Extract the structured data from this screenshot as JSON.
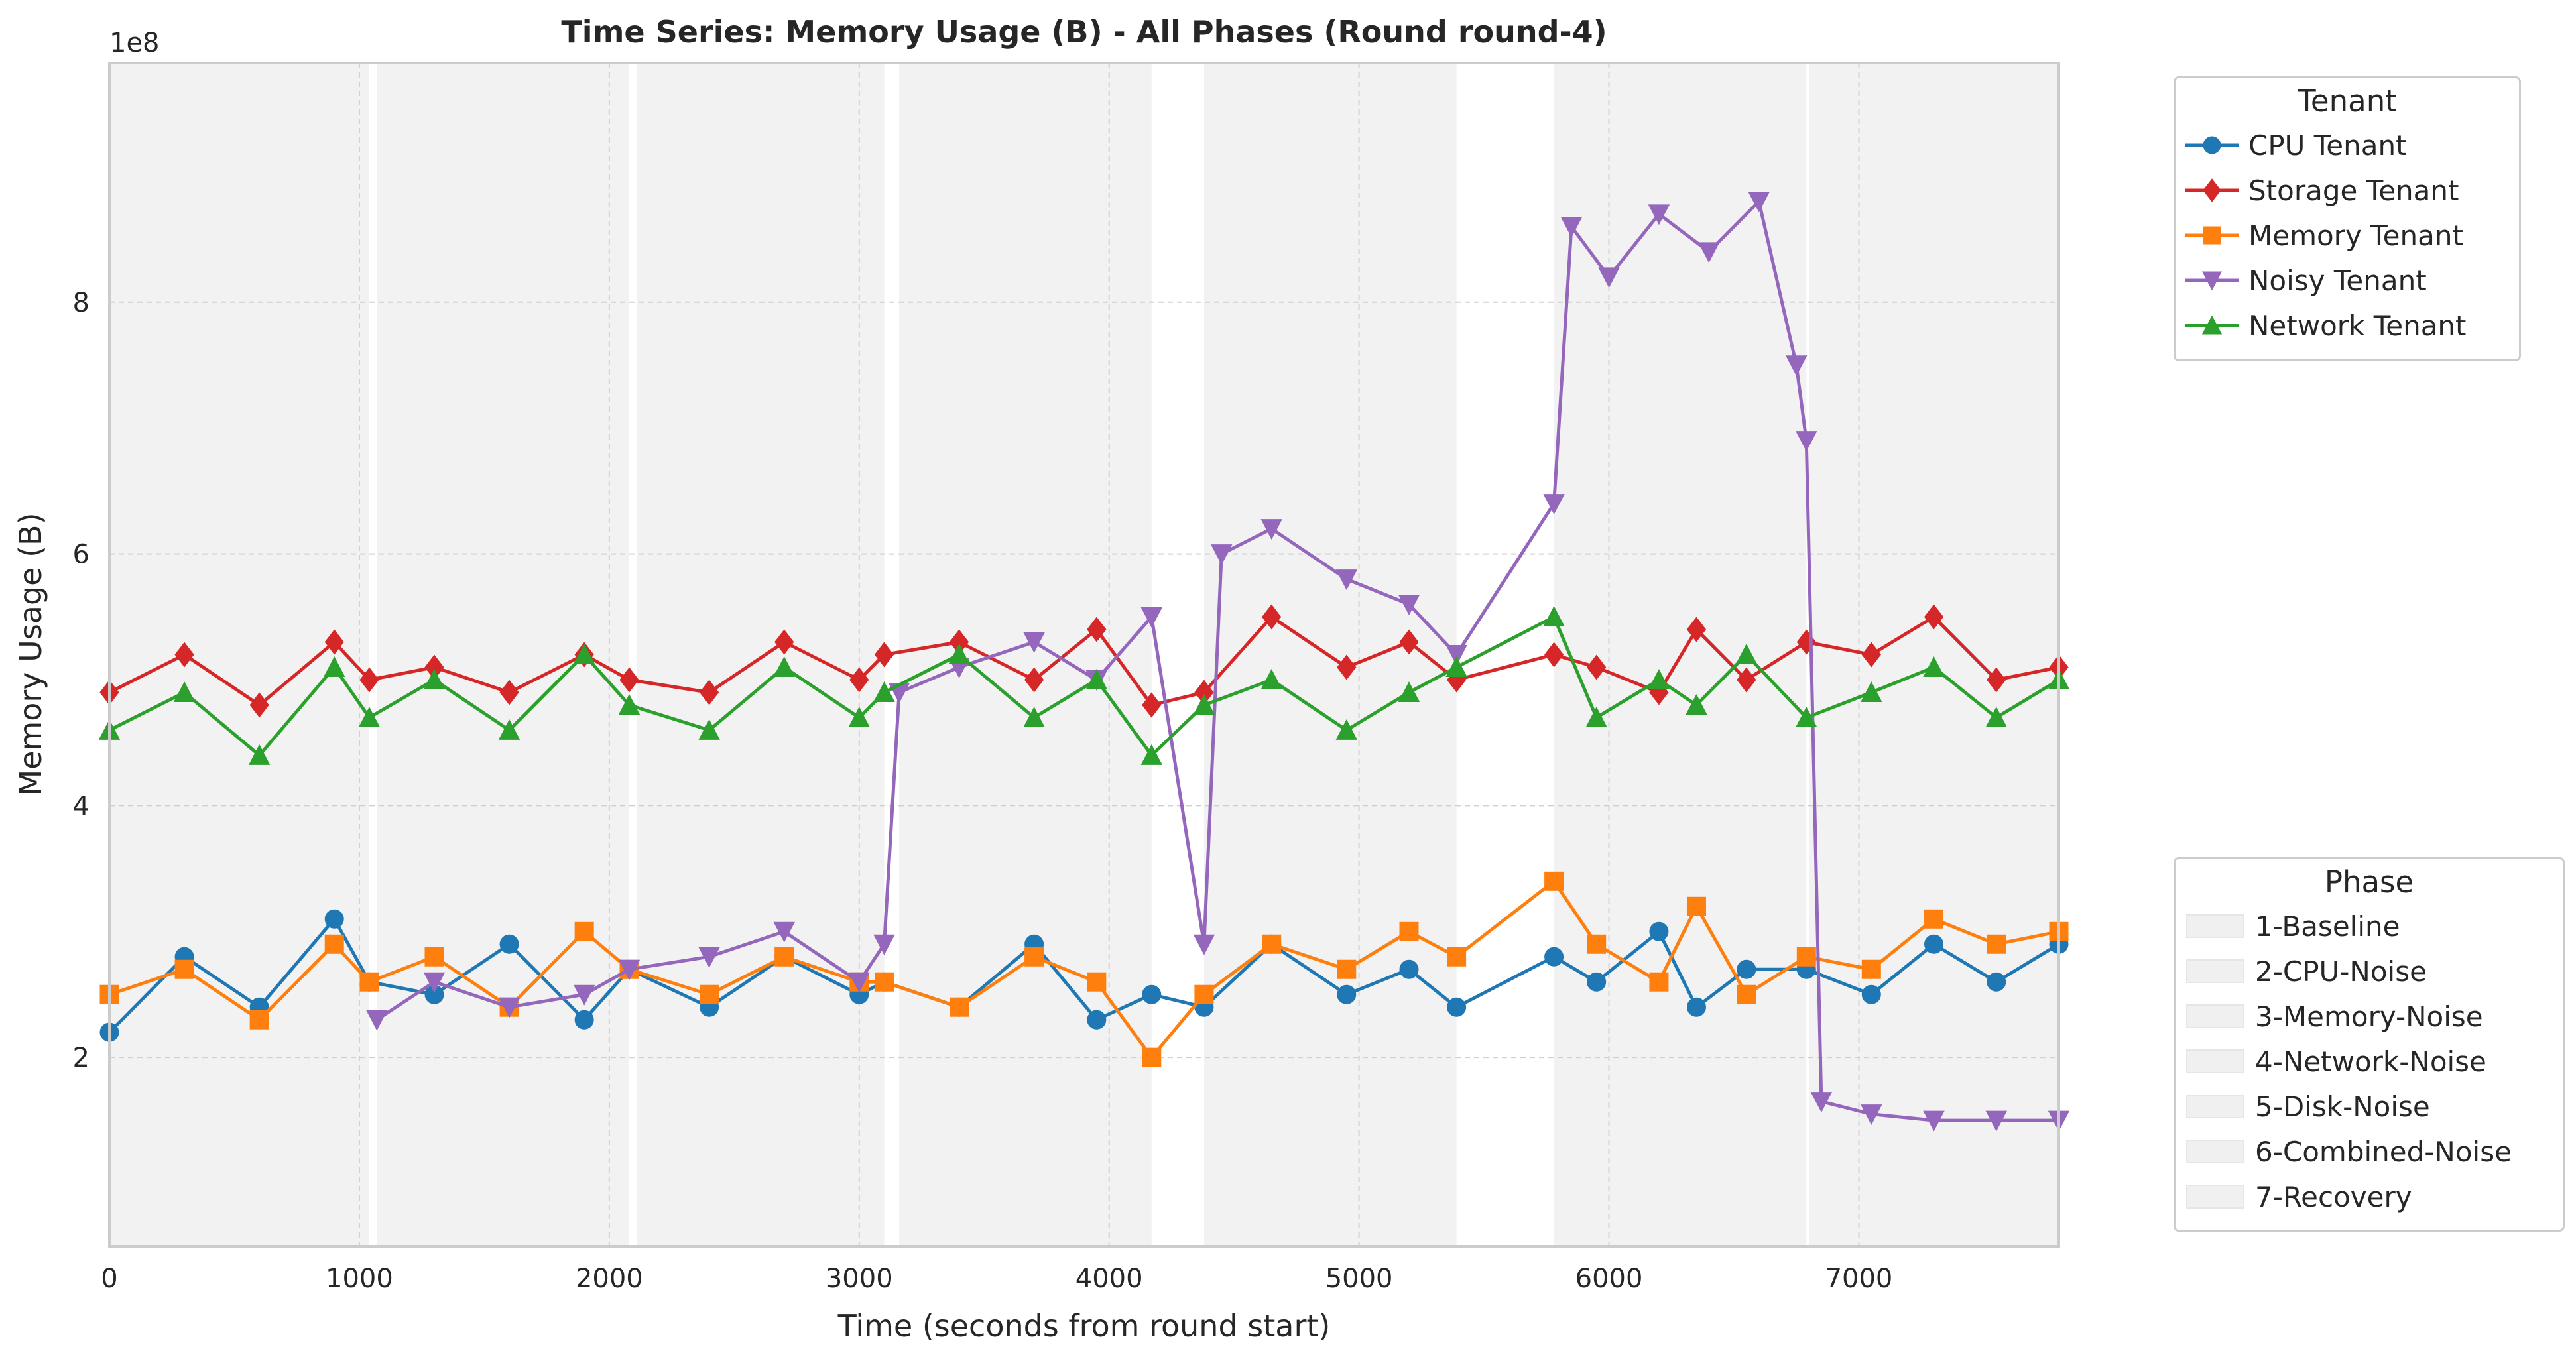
{
  "chart_data": {
    "type": "line",
    "title": "Time Series: Memory Usage (B) - All Phases (Round round-4)",
    "xlabel": "Time (seconds from round start)",
    "ylabel": "Memory Usage (B)",
    "y_offset_label": "1e8",
    "xlim": [
      0,
      7800
    ],
    "ylim": [
      0.5,
      9.9
    ],
    "x_ticks": [
      0,
      1000,
      2000,
      3000,
      4000,
      5000,
      6000,
      7000
    ],
    "x_tick_labels": [
      "0",
      "1000",
      "2000",
      "3000",
      "4000",
      "5000",
      "6000",
      "7000"
    ],
    "y_ticks": [
      2,
      4,
      6,
      8
    ],
    "y_tick_labels": [
      "2",
      "4",
      "6",
      "8"
    ],
    "grid": true,
    "phases": [
      {
        "name": "1-Baseline",
        "start": 0,
        "end": 1040
      },
      {
        "name": "2-CPU-Noise",
        "start": 1070,
        "end": 2080
      },
      {
        "name": "3-Memory-Noise",
        "start": 2110,
        "end": 3100
      },
      {
        "name": "4-Network-Noise",
        "start": 3160,
        "end": 4170
      },
      {
        "name": "5-Disk-Noise",
        "start": 4380,
        "end": 5390
      },
      {
        "name": "6-Combined-Noise",
        "start": 5780,
        "end": 6790
      },
      {
        "name": "7-Recovery",
        "start": 6800,
        "end": 7800
      }
    ],
    "phase_legend_title": "Phase",
    "tenant_legend_title": "Tenant",
    "legend_position": "outside-right",
    "series": [
      {
        "name": "CPU Tenant",
        "color": "#1f77b4",
        "marker": "circle",
        "x": [
          0,
          300,
          600,
          900,
          1040,
          1300,
          1600,
          1900,
          2080,
          2400,
          2700,
          3000,
          3100,
          3400,
          3700,
          3950,
          4170,
          4380,
          4650,
          4950,
          5200,
          5390,
          5780,
          5950,
          6200,
          6350,
          6550,
          6790,
          7050,
          7300,
          7550,
          7800
        ],
        "y": [
          2.2,
          2.8,
          2.4,
          3.1,
          2.6,
          2.5,
          2.9,
          2.3,
          2.7,
          2.4,
          2.8,
          2.5,
          2.6,
          2.4,
          2.9,
          2.3,
          2.5,
          2.4,
          2.9,
          2.5,
          2.7,
          2.4,
          2.8,
          2.6,
          3.0,
          2.4,
          2.7,
          2.7,
          2.5,
          2.9,
          2.6,
          2.9
        ]
      },
      {
        "name": "Storage Tenant",
        "color": "#d62728",
        "marker": "diamond",
        "x": [
          0,
          300,
          600,
          900,
          1040,
          1300,
          1600,
          1900,
          2080,
          2400,
          2700,
          3000,
          3100,
          3400,
          3700,
          3950,
          4170,
          4380,
          4650,
          4950,
          5200,
          5390,
          5780,
          5950,
          6200,
          6350,
          6550,
          6790,
          7050,
          7300,
          7550,
          7800
        ],
        "y": [
          4.9,
          5.2,
          4.8,
          5.3,
          5.0,
          5.1,
          4.9,
          5.2,
          5.0,
          4.9,
          5.3,
          5.0,
          5.2,
          5.3,
          5.0,
          5.4,
          4.8,
          4.9,
          5.5,
          5.1,
          5.3,
          5.0,
          5.2,
          5.1,
          4.9,
          5.4,
          5.0,
          5.3,
          5.2,
          5.5,
          5.0,
          5.1
        ]
      },
      {
        "name": "Memory Tenant",
        "color": "#ff7f0e",
        "marker": "square",
        "x": [
          0,
          300,
          600,
          900,
          1040,
          1300,
          1600,
          1900,
          2080,
          2400,
          2700,
          3000,
          3100,
          3400,
          3700,
          3950,
          4170,
          4380,
          4650,
          4950,
          5200,
          5390,
          5780,
          5950,
          6200,
          6350,
          6550,
          6790,
          7050,
          7300,
          7550,
          7800
        ],
        "y": [
          2.5,
          2.7,
          2.3,
          2.9,
          2.6,
          2.8,
          2.4,
          3.0,
          2.7,
          2.5,
          2.8,
          2.6,
          2.6,
          2.4,
          2.8,
          2.6,
          2.0,
          2.5,
          2.9,
          2.7,
          3.0,
          2.8,
          3.4,
          2.9,
          2.6,
          3.2,
          2.5,
          2.8,
          2.7,
          3.1,
          2.9,
          3.0
        ]
      },
      {
        "name": "Noisy Tenant",
        "color": "#9467bd",
        "marker": "triangle-down",
        "x": [
          1070,
          1300,
          1600,
          1900,
          2080,
          2400,
          2700,
          3000,
          3100,
          3160,
          3400,
          3700,
          3950,
          4170,
          4380,
          4450,
          4650,
          4950,
          5200,
          5390,
          5780,
          5850,
          6000,
          6200,
          6400,
          6600,
          6750,
          6790,
          6850,
          7050,
          7300,
          7550,
          7800
        ],
        "y": [
          2.3,
          2.6,
          2.4,
          2.5,
          2.7,
          2.8,
          3.0,
          2.6,
          2.9,
          4.9,
          5.1,
          5.3,
          5.0,
          5.5,
          2.9,
          6.0,
          6.2,
          5.8,
          5.6,
          5.2,
          6.4,
          8.6,
          8.2,
          8.7,
          8.4,
          8.8,
          7.5,
          6.9,
          1.65,
          1.55,
          1.5,
          1.5,
          1.5
        ]
      },
      {
        "name": "Network Tenant",
        "color": "#2ca02c",
        "marker": "triangle-up",
        "x": [
          0,
          300,
          600,
          900,
          1040,
          1300,
          1600,
          1900,
          2080,
          2400,
          2700,
          3000,
          3100,
          3400,
          3700,
          3950,
          4170,
          4380,
          4650,
          4950,
          5200,
          5390,
          5780,
          5950,
          6200,
          6350,
          6550,
          6790,
          7050,
          7300,
          7550,
          7800
        ],
        "y": [
          4.6,
          4.9,
          4.4,
          5.1,
          4.7,
          5.0,
          4.6,
          5.2,
          4.8,
          4.6,
          5.1,
          4.7,
          4.9,
          5.2,
          4.7,
          5.0,
          4.4,
          4.8,
          5.0,
          4.6,
          4.9,
          5.1,
          5.5,
          4.7,
          5.0,
          4.8,
          5.2,
          4.7,
          4.9,
          5.1,
          4.7,
          5.0
        ]
      }
    ]
  }
}
